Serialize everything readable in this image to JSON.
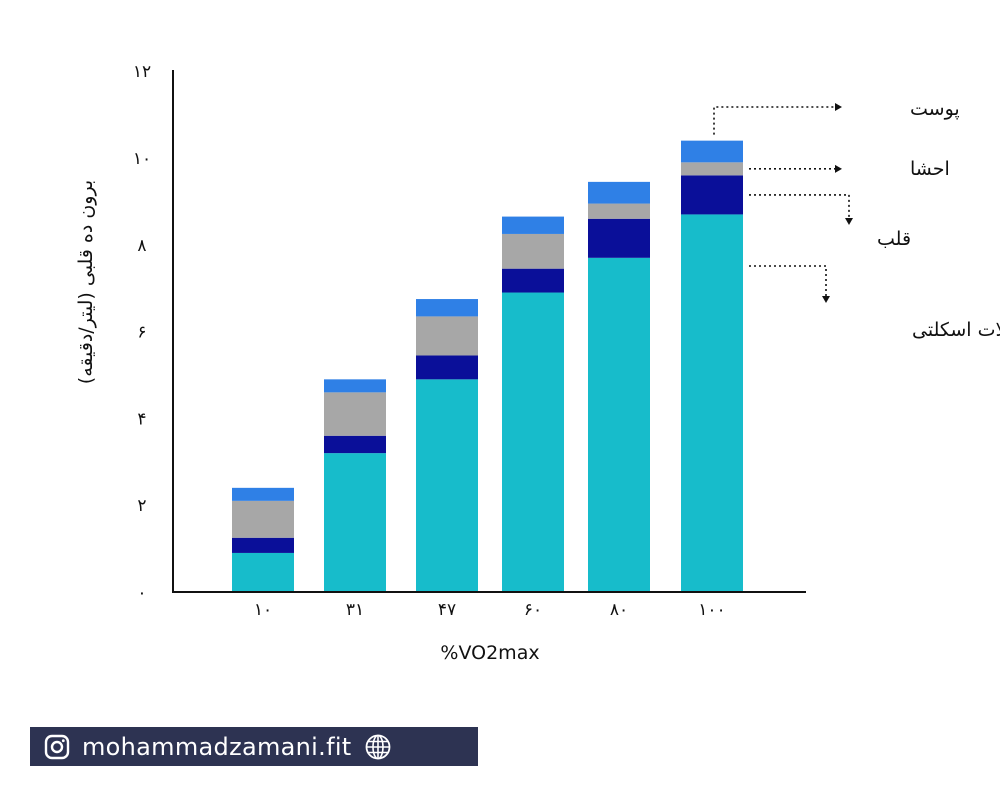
{
  "chart_data": {
    "type": "bar",
    "stacked": true,
    "categories": [
      "۱۰",
      "۳۱",
      "۴۷",
      "۶۰",
      "۸۰",
      "۱۰۰"
    ],
    "series": [
      {
        "name": "عضلات اسکلتی",
        "color": "#17bccb",
        "values": [
          0.9,
          3.2,
          4.9,
          6.9,
          7.7,
          8.7
        ]
      },
      {
        "name": "قلب",
        "color": "#0a0f99",
        "values": [
          0.35,
          0.4,
          0.55,
          0.55,
          0.9,
          0.9
        ]
      },
      {
        "name": "احشا",
        "color": "#a7a7a7",
        "values": [
          0.85,
          1.0,
          0.9,
          0.8,
          0.35,
          0.3
        ]
      },
      {
        "name": "پوست",
        "color": "#2f80e6",
        "values": [
          0.3,
          0.3,
          0.4,
          0.4,
          0.5,
          0.5
        ]
      }
    ],
    "yticks": [
      "۰",
      "۲",
      "۴",
      "۶",
      "۸",
      "۱۰",
      "۱۲"
    ],
    "ylim": [
      0,
      12
    ],
    "xlabel": "%VO2max",
    "ylabel": "برون ده قلبی (لیتر/دقیقه)",
    "legend_placement": "right, labels pointing to the last bar"
  },
  "footer": {
    "text": "mohammadzamani.fit",
    "left_icon": "instagram-icon",
    "right_icon": "globe-icon",
    "background": "#2d3352"
  }
}
